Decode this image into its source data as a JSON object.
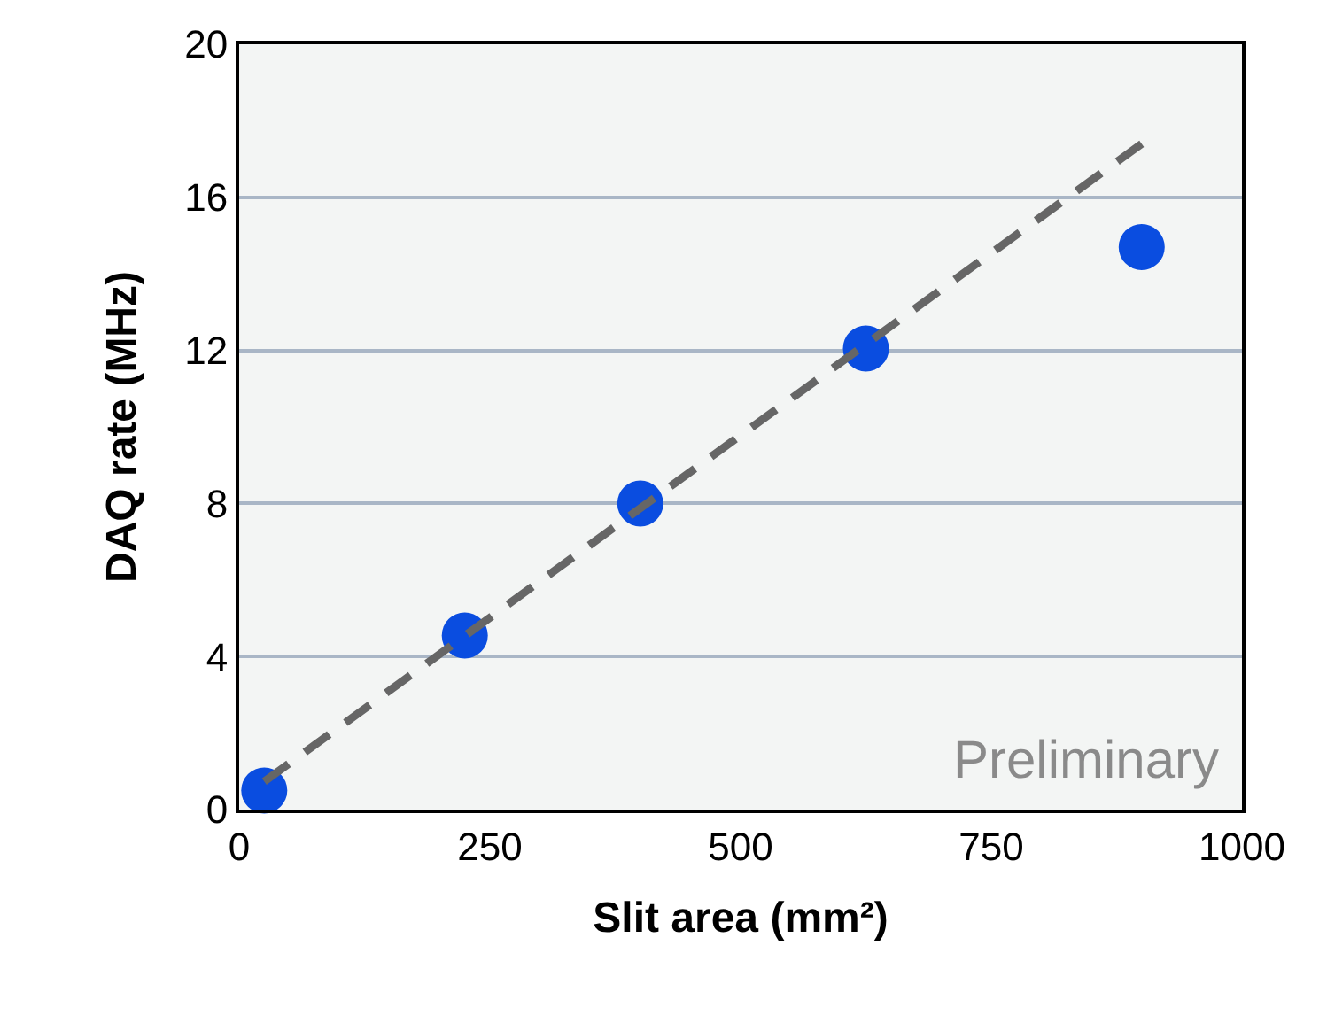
{
  "chart_data": {
    "type": "scatter",
    "xlabel": "Slit area (mm²)",
    "ylabel": "DAQ rate (MHz)",
    "x": [
      25,
      225,
      400,
      625,
      900
    ],
    "series": [
      {
        "color": "#0a4de0",
        "values": [
          0.5,
          4.55,
          8.0,
          12.05,
          14.7
        ],
        "marker": "circle"
      },
      {
        "type": "line",
        "color": "#666666",
        "x": [
          25,
          900
        ],
        "values": [
          0.73,
          17.4
        ],
        "line_style": "dashed",
        "marker": "none"
      }
    ],
    "xlim": [
      0,
      1000
    ],
    "ylim": [
      0,
      20
    ],
    "xticks": [
      0,
      250,
      500,
      750,
      1000
    ],
    "yticks": [
      0,
      4,
      8,
      12,
      16,
      20
    ],
    "grid": "y",
    "annotations": [
      "Preliminary"
    ]
  }
}
